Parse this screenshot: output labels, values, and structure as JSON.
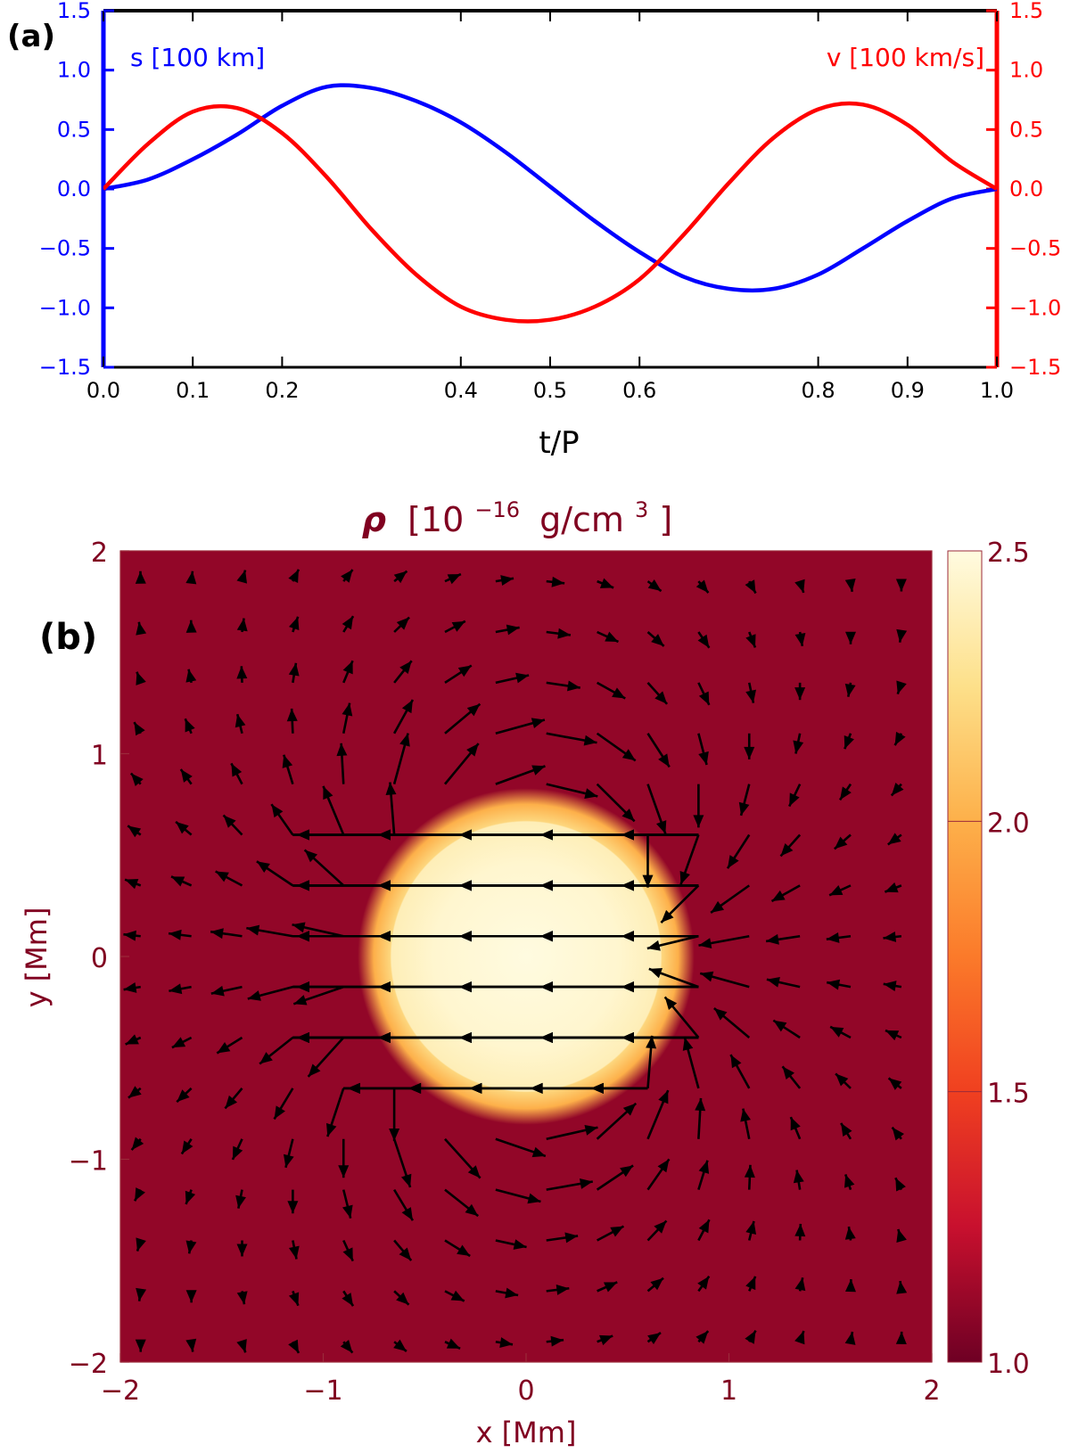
{
  "chart_data": [
    {
      "type": "line",
      "panel_label": "(a)",
      "xlabel": "t/P",
      "xlim": [
        0,
        1
      ],
      "x_ticks": [
        "0.0",
        "0.1",
        "0.2",
        "0.4",
        "0.5",
        "0.6",
        "0.8",
        "0.9",
        "1.0"
      ],
      "x_tick_values": [
        0.0,
        0.1,
        0.2,
        0.4,
        0.5,
        0.6,
        0.8,
        0.9,
        1.0
      ],
      "y_left_ticks": [
        "−1.5",
        "−1.0",
        "−0.5",
        "0.0",
        "0.5",
        "1.0",
        "1.5"
      ],
      "y_right_ticks": [
        "−1.5",
        "−1.0",
        "−0.5",
        "0.0",
        "0.5",
        "1.0",
        "1.5"
      ],
      "y_tick_values": [
        -1.5,
        -1.0,
        -0.5,
        0.0,
        0.5,
        1.0,
        1.5
      ],
      "ylim": [
        -1.5,
        1.5
      ],
      "series": [
        {
          "name": "s [100 km]",
          "axis": "left",
          "color": "#0000ff",
          "x": [
            0.0,
            0.05,
            0.1,
            0.15,
            0.2,
            0.25,
            0.3,
            0.35,
            0.4,
            0.45,
            0.5,
            0.55,
            0.6,
            0.65,
            0.7,
            0.75,
            0.8,
            0.85,
            0.9,
            0.95,
            1.0
          ],
          "values": [
            0.0,
            0.08,
            0.25,
            0.46,
            0.7,
            0.86,
            0.85,
            0.74,
            0.56,
            0.31,
            0.02,
            -0.27,
            -0.53,
            -0.74,
            -0.84,
            -0.84,
            -0.72,
            -0.5,
            -0.27,
            -0.08,
            0.0
          ]
        },
        {
          "name": "v [100 km/s]",
          "axis": "right",
          "color": "#ff0000",
          "x": [
            0.0,
            0.05,
            0.1,
            0.15,
            0.2,
            0.25,
            0.3,
            0.35,
            0.4,
            0.45,
            0.5,
            0.55,
            0.6,
            0.65,
            0.7,
            0.75,
            0.8,
            0.85,
            0.9,
            0.95,
            1.0
          ],
          "values": [
            0.0,
            0.38,
            0.65,
            0.68,
            0.47,
            0.1,
            -0.34,
            -0.72,
            -0.99,
            -1.1,
            -1.1,
            -0.99,
            -0.76,
            -0.38,
            0.05,
            0.43,
            0.67,
            0.71,
            0.54,
            0.23,
            0.0
          ]
        }
      ]
    },
    {
      "type": "heatmap",
      "panel_label": "(b)",
      "title": "ρ [10⁻¹⁶ g/cm³]",
      "title_parts": {
        "rho": "ρ",
        "open": "[10",
        "exp": "−16",
        "unit": "g/cm",
        "unit_exp": "3",
        "close": "]"
      },
      "xlabel": "x [Mm]",
      "ylabel": "y [Mm]",
      "xlim": [
        -2,
        2
      ],
      "ylim": [
        -2,
        2
      ],
      "x_ticks": [
        "−2",
        "−1",
        "0",
        "1",
        "2"
      ],
      "x_tick_values": [
        -2,
        -1,
        0,
        1,
        2
      ],
      "y_ticks": [
        "−2",
        "−1",
        "0",
        "1",
        "2"
      ],
      "y_tick_values": [
        -2,
        -1,
        0,
        1,
        2
      ],
      "colorbar": {
        "range": [
          1.0,
          2.5
        ],
        "ticks": [
          "1.0",
          "1.5",
          "2.0",
          "2.5"
        ],
        "tick_values": [
          1.0,
          1.5,
          2.0,
          2.5
        ],
        "colors": [
          "#6e0024",
          "#c8102e",
          "#f04020",
          "#fb7a2a",
          "#fdb04a",
          "#fde08a",
          "#fffbe0"
        ]
      },
      "density": {
        "background": 1.1,
        "peak": 2.5,
        "blob_center": [
          0.0,
          0.0
        ],
        "blob_radius": 0.75,
        "edge_width": 0.08
      },
      "velocity_field": {
        "description": "flow past a dense blob moving in the -x direction",
        "grid_x": [
          -1.9,
          -1.65,
          -1.4,
          -1.15,
          -0.9,
          -0.65,
          -0.4,
          -0.15,
          0.1,
          0.35,
          0.6,
          0.85,
          1.1,
          1.35,
          1.6,
          1.85
        ],
        "grid_y": [
          -1.9,
          -1.65,
          -1.4,
          -1.15,
          -0.9,
          -0.65,
          -0.4,
          -0.15,
          0.1,
          0.35,
          0.6,
          0.85,
          1.1,
          1.35,
          1.6,
          1.85
        ],
        "inside_speed": 1.0,
        "inside_x_extent": [
          -0.75,
          0.85
        ]
      },
      "colors": {
        "frame": "#000000",
        "text": "#800020",
        "arrow": "#000000"
      }
    }
  ]
}
